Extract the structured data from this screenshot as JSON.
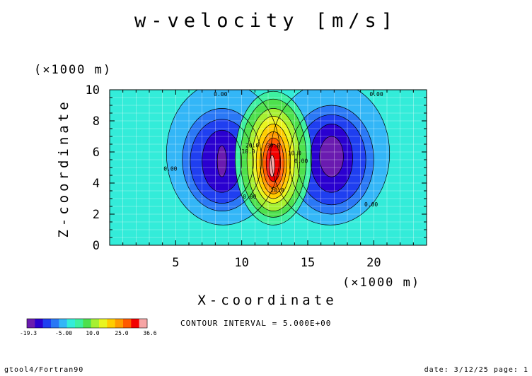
{
  "chart_data": {
    "type": "contour",
    "title": "w-velocity [m/s]",
    "xlabel": "X-coordinate",
    "ylabel": "Z-coordinate",
    "x_unit": "(×1000 m)",
    "y_unit": "(×1000 m)",
    "xlim": [
      0,
      24
    ],
    "ylim": [
      0,
      10
    ],
    "x_ticks": [
      5,
      10,
      15,
      20
    ],
    "y_ticks": [
      0,
      2,
      4,
      6,
      8,
      10
    ],
    "grid": true,
    "contour_interval_text": "CONTOUR INTERVAL = 5.000E+00",
    "contour_labels": [
      {
        "text": "0.00",
        "x": 8.4,
        "z": 9.6
      },
      {
        "text": "0.00",
        "x": 20.2,
        "z": 9.6
      },
      {
        "text": "0.00",
        "x": 4.6,
        "z": 4.8
      },
      {
        "text": "0.00",
        "x": 10.6,
        "z": 3.0
      },
      {
        "text": "0.00",
        "x": 14.5,
        "z": 5.3
      },
      {
        "text": "0.00",
        "x": 19.8,
        "z": 2.5
      },
      {
        "text": "20.0",
        "x": 10.8,
        "z": 6.3
      },
      {
        "text": "10.0",
        "x": 10.5,
        "z": 5.9
      },
      {
        "text": "30.0",
        "x": 12.4,
        "z": 6.3
      },
      {
        "text": "10.0",
        "x": 14.0,
        "z": 5.8
      },
      {
        "text": "20.0",
        "x": 12.7,
        "z": 3.4
      }
    ],
    "colorbar": {
      "ticks": [
        "-19.3",
        "-5.00",
        "10.0",
        "25.0",
        "36.6"
      ],
      "colors": [
        "#6a1bb0",
        "#2a00d0",
        "#1f3ff0",
        "#2a78f5",
        "#33b6f7",
        "#33ecd9",
        "#3df0a0",
        "#4de04d",
        "#a6f032",
        "#e9f520",
        "#ffcd00",
        "#ff9b00",
        "#ff5a00",
        "#f20000",
        "#f7a5a5"
      ]
    },
    "series": [
      {
        "sign": "negative",
        "center": [
          8.5,
          5.5
        ],
        "min": -19.3
      },
      {
        "sign": "positive",
        "center": [
          12.4,
          5.3
        ],
        "max": 36.6
      },
      {
        "sign": "negative",
        "center": [
          16.8,
          5.6
        ],
        "min": -19.3
      }
    ]
  },
  "footer": {
    "left": "gtool4/Fortran90",
    "right": "date: 3/12/25 page: 1"
  }
}
